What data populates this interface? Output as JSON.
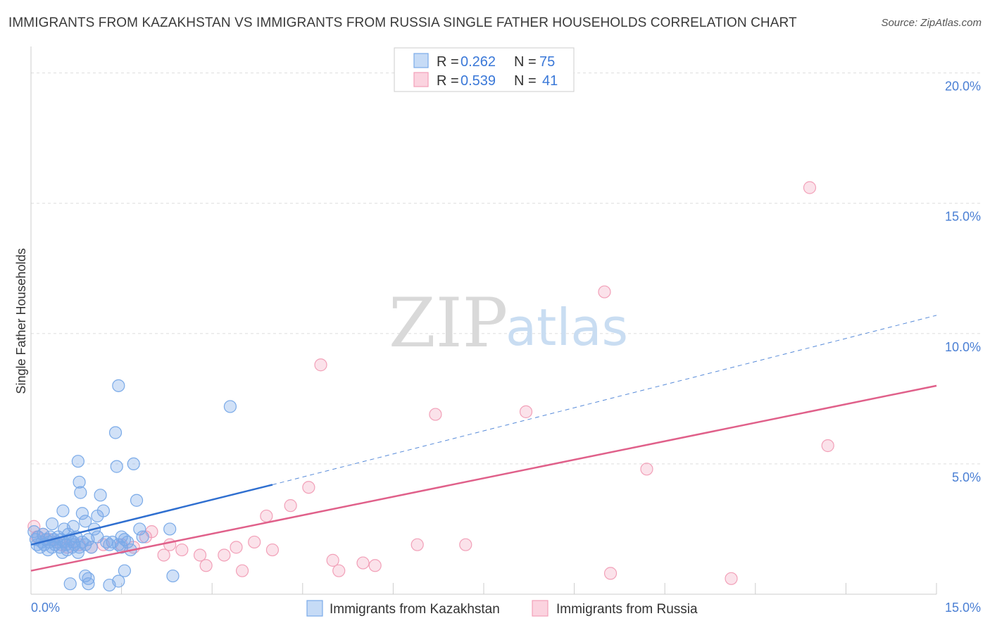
{
  "title": "IMMIGRANTS FROM KAZAKHSTAN VS IMMIGRANTS FROM RUSSIA SINGLE FATHER HOUSEHOLDS CORRELATION CHART",
  "source": "Source: ZipAtlas.com",
  "watermark": {
    "zip": "ZIP",
    "atlas": "atlas"
  },
  "colors": {
    "kazakhstan": "#7aaae8",
    "kazakhstan_line": "#2f6fd0",
    "russia": "#f2a0b8",
    "russia_line": "#e0608a",
    "tick": "#4a7fd4",
    "grid": "#dddddd"
  },
  "chart_data": {
    "type": "scatter",
    "xlabel": "",
    "ylabel": "Single Father Households",
    "xlim": [
      0,
      15
    ],
    "ylim": [
      0,
      20.8
    ],
    "x_ticks": [
      0,
      1.5,
      3.0,
      4.5,
      6.0,
      7.5,
      9.0,
      10.5,
      12.0,
      13.5,
      15.0
    ],
    "x_tick_labels": {
      "first": "0.0%",
      "last": "15.0%"
    },
    "y_ticks": [
      5,
      10,
      15,
      20
    ],
    "y_tick_labels": [
      "5.0%",
      "10.0%",
      "15.0%",
      "20.0%"
    ],
    "legend": [
      {
        "series": "Immigrants from Kazakhstan",
        "r_label": "R = ",
        "r": "0.262",
        "n_label": "N = ",
        "n": "75"
      },
      {
        "series": "Immigrants from Russia",
        "r_label": "R = ",
        "r": "0.539",
        "n_label": "N = ",
        "n": "41"
      }
    ],
    "series": [
      {
        "name": "Immigrants from Kazakhstan",
        "trend": {
          "x0": 0,
          "y0": 1.9,
          "x1": 4.0,
          "y1": 4.2,
          "dash_to_x": 15.0,
          "dash_to_y": 10.7
        },
        "points": [
          [
            0.05,
            2.4
          ],
          [
            0.08,
            2.1
          ],
          [
            0.1,
            1.9
          ],
          [
            0.12,
            2.2
          ],
          [
            0.15,
            1.8
          ],
          [
            0.18,
            2.0
          ],
          [
            0.2,
            2.3
          ],
          [
            0.22,
            1.9
          ],
          [
            0.25,
            2.1
          ],
          [
            0.28,
            1.7
          ],
          [
            0.3,
            2.0
          ],
          [
            0.32,
            2.2
          ],
          [
            0.35,
            1.8
          ],
          [
            0.38,
            2.1
          ],
          [
            0.4,
            1.9
          ],
          [
            0.42,
            2.0
          ],
          [
            0.45,
            2.2
          ],
          [
            0.48,
            1.8
          ],
          [
            0.5,
            2.1
          ],
          [
            0.52,
            1.6
          ],
          [
            0.55,
            2.0
          ],
          [
            0.58,
            1.9
          ],
          [
            0.6,
            1.7
          ],
          [
            0.62,
            2.3
          ],
          [
            0.65,
            2.1
          ],
          [
            0.68,
            1.8
          ],
          [
            0.7,
            2.0
          ],
          [
            0.72,
            1.9
          ],
          [
            0.75,
            2.2
          ],
          [
            0.78,
            1.6
          ],
          [
            0.8,
            1.8
          ],
          [
            0.85,
            2.0
          ],
          [
            0.9,
            1.9
          ],
          [
            0.95,
            2.1
          ],
          [
            1.0,
            1.8
          ],
          [
            0.35,
            2.7
          ],
          [
            0.55,
            2.5
          ],
          [
            0.7,
            2.6
          ],
          [
            0.85,
            3.1
          ],
          [
            0.9,
            2.8
          ],
          [
            0.53,
            3.2
          ],
          [
            0.78,
            5.1
          ],
          [
            0.8,
            4.3
          ],
          [
            0.82,
            3.9
          ],
          [
            1.05,
            2.5
          ],
          [
            1.1,
            2.2
          ],
          [
            1.1,
            3.0
          ],
          [
            1.15,
            3.8
          ],
          [
            1.2,
            3.2
          ],
          [
            1.25,
            2.0
          ],
          [
            1.3,
            1.9
          ],
          [
            1.35,
            2.0
          ],
          [
            1.4,
            6.2
          ],
          [
            1.42,
            4.9
          ],
          [
            1.45,
            8.0
          ],
          [
            1.5,
            2.2
          ],
          [
            1.55,
            2.1
          ],
          [
            1.6,
            2.0
          ],
          [
            1.5,
            1.8
          ],
          [
            1.45,
            1.9
          ],
          [
            1.45,
            0.5
          ],
          [
            1.55,
            0.9
          ],
          [
            1.7,
            5.0
          ],
          [
            1.75,
            3.6
          ],
          [
            1.8,
            2.5
          ],
          [
            1.85,
            2.2
          ],
          [
            1.65,
            1.7
          ],
          [
            2.3,
            2.5
          ],
          [
            2.35,
            0.7
          ],
          [
            0.65,
            0.4
          ],
          [
            0.95,
            0.4
          ],
          [
            0.95,
            0.6
          ],
          [
            0.9,
            0.7
          ],
          [
            1.3,
            0.35
          ],
          [
            3.3,
            7.2
          ]
        ]
      },
      {
        "name": "Immigrants from Russia",
        "trend": {
          "x0": 0,
          "y0": 0.9,
          "x1": 15.0,
          "y1": 8.0
        },
        "points": [
          [
            0.05,
            2.6
          ],
          [
            0.1,
            2.2
          ],
          [
            0.3,
            2.1
          ],
          [
            0.5,
            1.9
          ],
          [
            0.6,
            1.8
          ],
          [
            0.8,
            1.9
          ],
          [
            1.0,
            1.8
          ],
          [
            1.2,
            1.9
          ],
          [
            1.5,
            1.9
          ],
          [
            1.7,
            1.8
          ],
          [
            1.9,
            2.2
          ],
          [
            2.0,
            2.4
          ],
          [
            2.2,
            1.5
          ],
          [
            2.3,
            1.9
          ],
          [
            2.5,
            1.7
          ],
          [
            2.8,
            1.5
          ],
          [
            2.9,
            1.1
          ],
          [
            3.2,
            1.5
          ],
          [
            3.4,
            1.8
          ],
          [
            3.5,
            0.9
          ],
          [
            3.7,
            2.0
          ],
          [
            3.9,
            3.0
          ],
          [
            4.0,
            1.7
          ],
          [
            4.3,
            3.4
          ],
          [
            4.6,
            4.1
          ],
          [
            4.8,
            8.8
          ],
          [
            5.0,
            1.3
          ],
          [
            5.1,
            0.9
          ],
          [
            5.5,
            1.2
          ],
          [
            5.7,
            1.1
          ],
          [
            6.4,
            1.9
          ],
          [
            6.7,
            6.9
          ],
          [
            7.2,
            1.9
          ],
          [
            8.2,
            7.0
          ],
          [
            9.5,
            11.6
          ],
          [
            9.6,
            0.8
          ],
          [
            10.2,
            4.8
          ],
          [
            11.6,
            0.6
          ],
          [
            12.9,
            15.6
          ],
          [
            13.2,
            5.7
          ],
          [
            0.2,
            2.3
          ]
        ]
      }
    ]
  }
}
